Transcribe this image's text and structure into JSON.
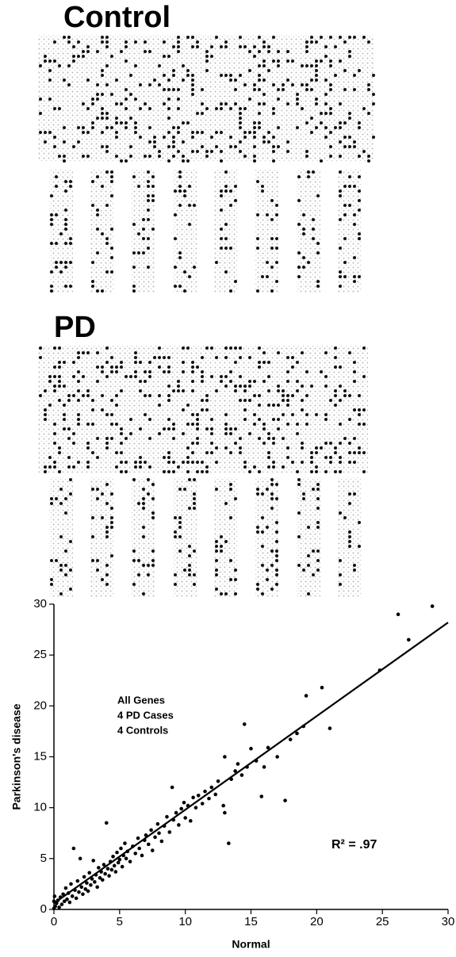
{
  "panels": [
    {
      "label": "Control"
    },
    {
      "label": "PD"
    }
  ],
  "chart_data": {
    "type": "scatter",
    "xlabel": "Normal",
    "ylabel": "Parkinson's disease",
    "annotations": [
      "All Genes",
      "4 PD Cases",
      "4 Controls"
    ],
    "r_squared": "R² = .97",
    "xlim": [
      0,
      30
    ],
    "ylim": [
      0,
      30
    ],
    "xticks": [
      0,
      5,
      10,
      15,
      20,
      25,
      30
    ],
    "yticks": [
      0,
      5,
      10,
      15,
      20,
      25,
      30
    ],
    "color": "#000000",
    "x": [
      0,
      0,
      0.05,
      0.1,
      0.2,
      0.3,
      0.4,
      0.5,
      0.6,
      0.7,
      0.8,
      0.9,
      1.0,
      1.1,
      1.2,
      1.3,
      1.4,
      1.5,
      1.6,
      1.7,
      1.8,
      1.9,
      2.0,
      2.1,
      2.2,
      2.3,
      2.4,
      2.5,
      2.6,
      2.7,
      2.8,
      2.9,
      3.0,
      3.1,
      3.2,
      3.3,
      3.4,
      3.5,
      3.6,
      3.7,
      3.8,
      3.9,
      4.0,
      4.1,
      4.2,
      4.3,
      4.4,
      4.5,
      4.6,
      4.7,
      4.8,
      4.9,
      5.0,
      5.1,
      5.2,
      5.3,
      5.4,
      5.5,
      5.6,
      5.8,
      6.0,
      6.2,
      6.4,
      6.5,
      6.7,
      6.9,
      7.0,
      7.2,
      7.4,
      7.5,
      7.7,
      7.9,
      8.0,
      8.2,
      8.4,
      8.6,
      8.8,
      9.0,
      9.1,
      9.3,
      9.5,
      9.7,
      9.9,
      10.0,
      10.2,
      10.4,
      10.6,
      10.8,
      11.0,
      11.3,
      11.5,
      11.8,
      12.0,
      12.3,
      12.5,
      12.9,
      13.0,
      13.0,
      13.3,
      13.5,
      13.8,
      14.0,
      14.3,
      14.5,
      14.7,
      15.0,
      15.4,
      15.8,
      16.0,
      16.3,
      17.0,
      17.6,
      18.0,
      18.5,
      19.0,
      19.2,
      20.4,
      21.0,
      24.8,
      26.2,
      27.0,
      28.8
    ],
    "y": [
      0.1,
      0.8,
      1.3,
      0.3,
      0.6,
      0.9,
      0.2,
      1.2,
      0.5,
      1.5,
      0.8,
      2.1,
      1.0,
      1.6,
      0.7,
      2.5,
      1.3,
      6.0,
      1.9,
      1.1,
      2.8,
      1.7,
      5.0,
      2.2,
      1.5,
      3.2,
      2.0,
      2.6,
      1.8,
      3.6,
      2.4,
      3.0,
      4.8,
      2.7,
      3.4,
      2.2,
      4.1,
      3.1,
      3.7,
      2.9,
      4.4,
      3.5,
      8.5,
      4.0,
      3.3,
      4.7,
      3.9,
      5.2,
      4.3,
      3.7,
      5.6,
      4.6,
      4.9,
      6.0,
      4.2,
      5.3,
      6.5,
      5.0,
      5.7,
      4.7,
      6.2,
      5.5,
      7.0,
      6.0,
      5.3,
      6.8,
      7.3,
      6.4,
      7.8,
      5.8,
      7.1,
      8.4,
      7.5,
      6.7,
      8.2,
      9.1,
      7.6,
      12.0,
      8.8,
      9.5,
      8.3,
      9.9,
      10.5,
      9.0,
      10.2,
      8.7,
      11.0,
      10.0,
      11.2,
      10.4,
      11.6,
      10.9,
      12.0,
      11.3,
      12.6,
      10.2,
      9.5,
      15.0,
      6.5,
      12.8,
      13.6,
      14.3,
      13.2,
      18.2,
      14.0,
      15.8,
      14.6,
      11.1,
      14.0,
      15.9,
      15.0,
      10.7,
      16.7,
      17.3,
      18.0,
      21.0,
      21.8,
      17.8,
      23.5,
      29.0,
      26.5,
      29.8
    ],
    "fit_line": {
      "x": [
        0,
        30
      ],
      "y": [
        0.6,
        28.2
      ]
    }
  }
}
